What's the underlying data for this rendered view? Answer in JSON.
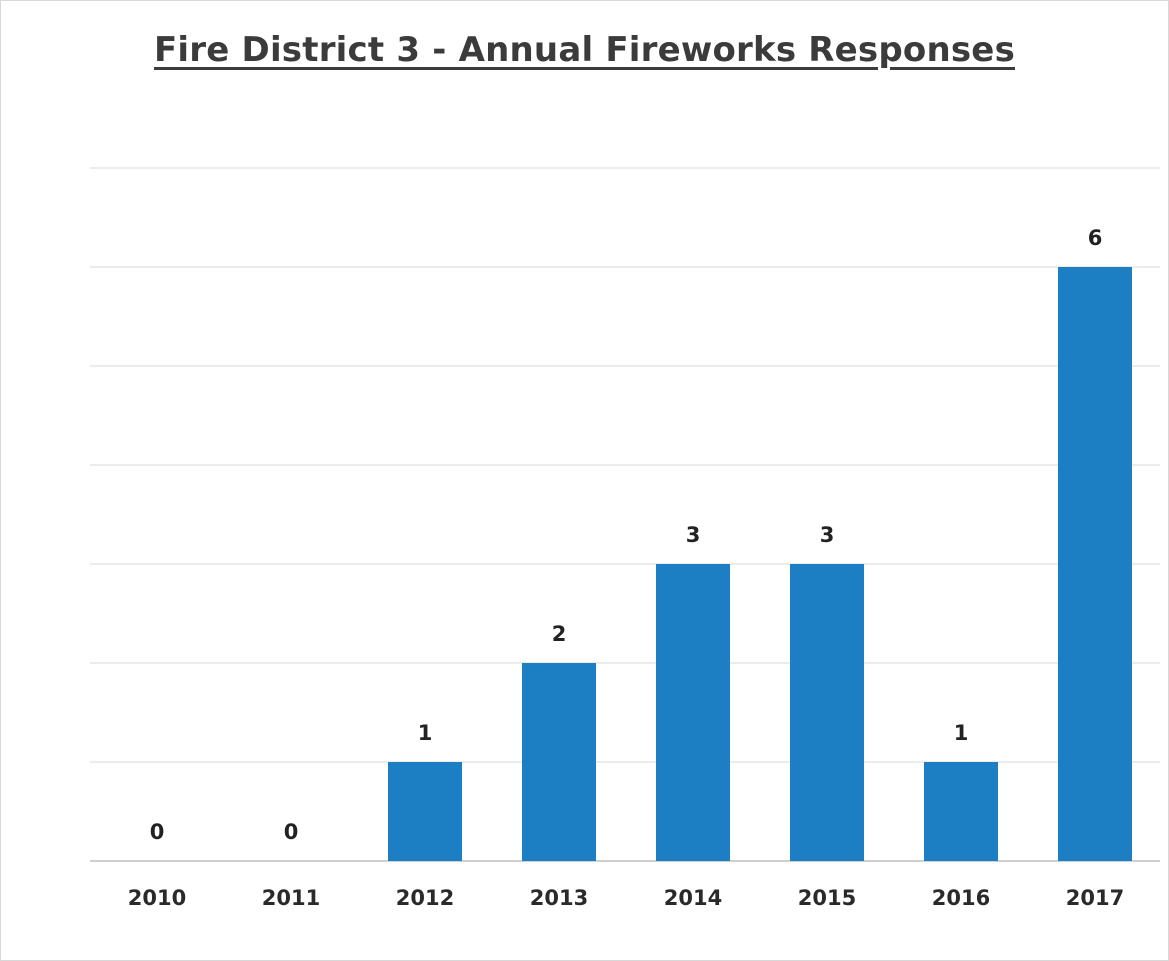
{
  "chart_data": {
    "type": "bar",
    "title": "Fire District 3 - Annual Fireworks Responses",
    "categories": [
      "2010",
      "2011",
      "2012",
      "2013",
      "2014",
      "2015",
      "2016",
      "2017"
    ],
    "values": [
      0,
      0,
      1,
      2,
      3,
      3,
      1,
      6
    ],
    "ylim": [
      0,
      7
    ],
    "grid": true,
    "legend": "none",
    "bar_color": "#1c7fc4"
  }
}
